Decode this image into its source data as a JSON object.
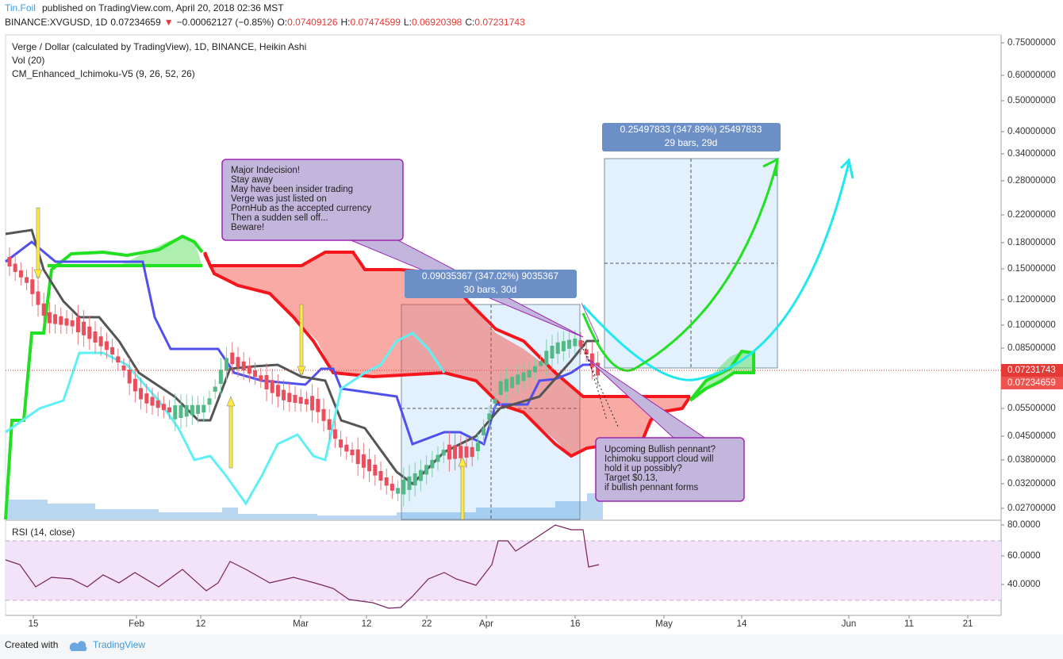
{
  "header": {
    "author": "Tin.Foil",
    "published": "published on TradingView.com, April 20, 2018 02:36 MST"
  },
  "quote": {
    "symbol": "BINANCE:XVGUSD, 1D",
    "last": "0.07234659",
    "arrow": "▼",
    "change": "−0.00062127 (−0.85%)",
    "open_label": "O:",
    "open": "0.07409126",
    "high_label": "H:",
    "high": "0.07474599",
    "low_label": "L:",
    "low": "0.06920398",
    "close_label": "C:",
    "close": "0.07231743"
  },
  "legend": [
    "Verge / Dollar (calculated by TradingView), 1D, BINANCE, Heikin Ashi",
    "Vol (20)",
    "CM_Enhanced_Ichimoku-V5 (9, 26, 52, 26)"
  ],
  "price_axis": [
    "0.75000000",
    "0.60000000",
    "0.50000000",
    "0.40000000",
    "0.34000000",
    "0.28000000",
    "0.22000000",
    "0.18000000",
    "0.15000000",
    "0.12000000",
    "0.10000000",
    "0.08500000",
    "0.05500000",
    "0.04500000",
    "0.03800000",
    "0.03200000",
    "0.02700000"
  ],
  "price_markers": [
    "0.07231743",
    "0.07234659"
  ],
  "rsi": {
    "label": "RSI (14, close)",
    "axis": [
      "80.0000",
      "60.0000",
      "40.0000"
    ]
  },
  "time_axis": [
    "15",
    "Feb",
    "12",
    "Mar",
    "12",
    "22",
    "Apr",
    "16",
    "May",
    "14",
    "Jun",
    "11",
    "21"
  ],
  "measures": [
    {
      "label": "0.09035367 (347.02%) 9035367",
      "bars": "30 bars, 30d"
    },
    {
      "label": "0.25497833 (347.89%) 25497833",
      "bars": "29 bars, 29d"
    }
  ],
  "notes": [
    {
      "lines": [
        "Major Indecision!",
        "Stay away",
        "May have been insider trading",
        "Verge was just listed on",
        "PornHub as the accepted currency",
        "Then a sudden sell off...",
        "Beware!"
      ]
    },
    {
      "lines": [
        "Upcoming Bullish pennant?",
        "Ichimoku support cloud will",
        "hold it up possibly?",
        "Target $0.13,",
        "if bullish pennant forms"
      ]
    }
  ],
  "footer": {
    "created": "Created with",
    "brand": "TradingView"
  }
}
